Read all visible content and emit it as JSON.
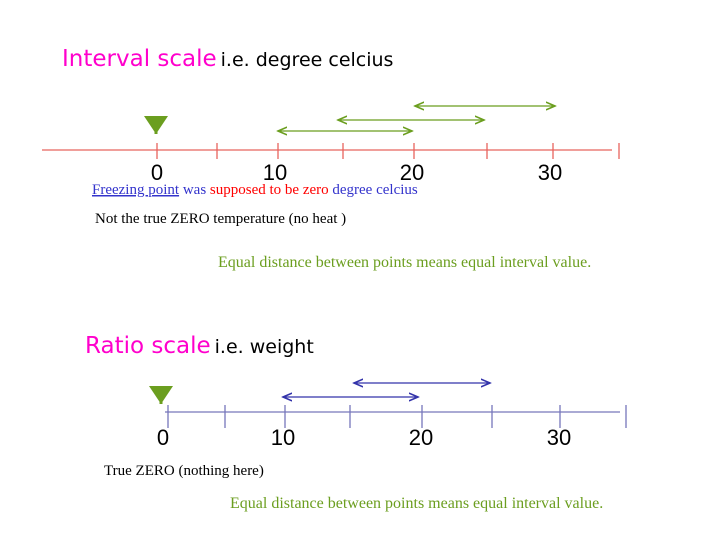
{
  "interval": {
    "title": "Interval scale",
    "subtitle": "i.e. degree celcius",
    "axis_labels": [
      "0",
      "10",
      "20",
      "30"
    ],
    "note1": {
      "link": "Freezing point",
      "part2": "was",
      "part3": "supposed to be zero",
      "part4": "degree celcius"
    },
    "note2": "Not the true ZERO temperature (no heat )",
    "note3": "Equal distance between points means equal interval value."
  },
  "ratio": {
    "title": "Ratio scale",
    "subtitle": "i.e. weight",
    "axis_labels": [
      "0",
      "10",
      "20",
      "30"
    ],
    "note1": "True ZERO (nothing here)",
    "note2": "Equal distance between points means equal interval value."
  }
}
